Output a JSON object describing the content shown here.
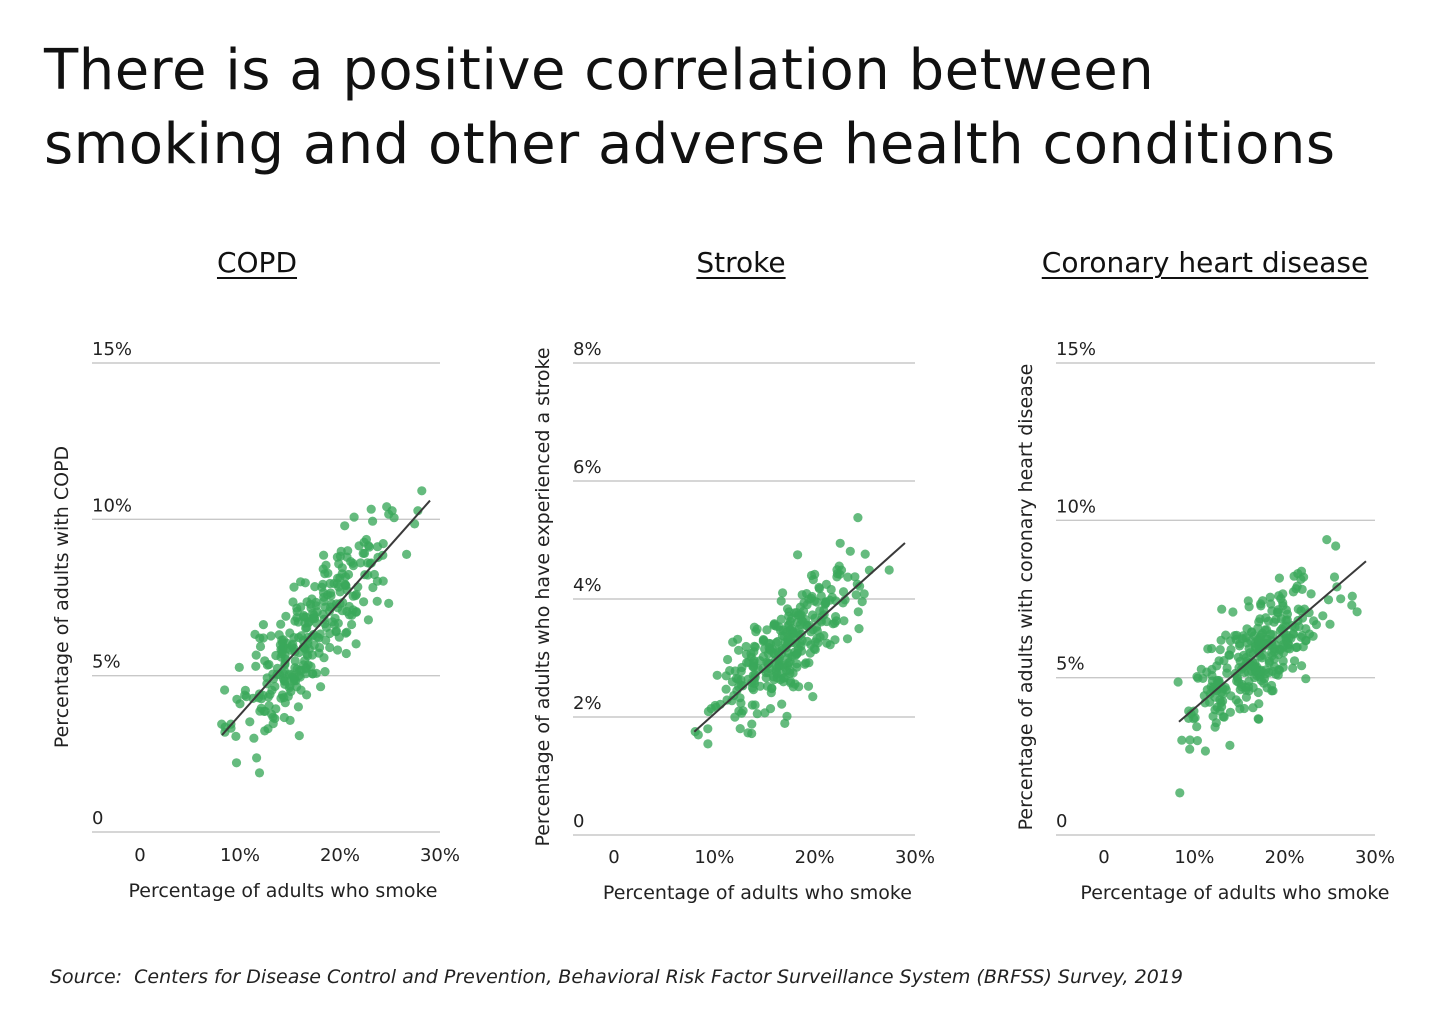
{
  "title_line1": "There is a positive correlation between",
  "title_line2": "smoking and other adverse health conditions",
  "source": "Source:  Centers for Disease Control and Prevention, Behavioral Risk Factor Surveillance System (BRFSS) Survey, 2019",
  "colors": {
    "point": "#3aa85a",
    "trend": "#3a3a3a",
    "grid": "#c8c8c8"
  },
  "chart_data": [
    {
      "type": "scatter",
      "title": "COPD",
      "xlabel": "Percentage of adults who smoke",
      "ylabel": "Percentage of adults with COPD",
      "xlim": [
        -5,
        30
      ],
      "ylim": [
        0,
        15
      ],
      "xticks": [
        0,
        10,
        20,
        30
      ],
      "xtick_labels": [
        "0",
        "10%",
        "20%",
        "30%"
      ],
      "yticks": [
        0,
        5,
        10,
        15
      ],
      "ytick_labels": [
        "0",
        "5%",
        "10%",
        "15%"
      ],
      "trend": {
        "x": [
          8.2,
          29.0
        ],
        "y": [
          3.1,
          10.6
        ]
      },
      "points": {
        "n": 300,
        "x_range": [
          8.0,
          29.0
        ],
        "residual_sd": 0.9,
        "seed": 11
      }
    },
    {
      "type": "scatter",
      "title": "Stroke",
      "xlabel": "Percentage of adults who smoke",
      "ylabel": "Percentage of adults who have experienced a stroke",
      "xlim": [
        -5,
        30
      ],
      "ylim": [
        0,
        8
      ],
      "xticks": [
        0,
        10,
        20,
        30
      ],
      "xtick_labels": [
        "0",
        "10%",
        "20%",
        "30%"
      ],
      "yticks": [
        0,
        2,
        4,
        6,
        8
      ],
      "ytick_labels": [
        "0",
        "2%",
        "4%",
        "6%",
        "8%"
      ],
      "trend": {
        "x": [
          8.0,
          29.0
        ],
        "y": [
          1.75,
          4.95
        ]
      },
      "points": {
        "n": 300,
        "x_range": [
          8.0,
          29.0
        ],
        "residual_sd": 0.42,
        "seed": 23
      }
    },
    {
      "type": "scatter",
      "title": "Coronary heart disease",
      "xlabel": "Percentage of adults who smoke",
      "ylabel": "Percentage of adults with coronary heart disease",
      "xlim": [
        -5,
        30
      ],
      "ylim": [
        0,
        15
      ],
      "xticks": [
        0,
        10,
        20,
        30
      ],
      "xtick_labels": [
        "0",
        "10%",
        "20%",
        "30%"
      ],
      "yticks": [
        0,
        5,
        10,
        15
      ],
      "ytick_labels": [
        "0",
        "5%",
        "10%",
        "15%"
      ],
      "trend": {
        "x": [
          8.3,
          29.0
        ],
        "y": [
          3.6,
          8.7
        ]
      },
      "points": {
        "n": 300,
        "x_range": [
          8.0,
          29.0
        ],
        "residual_sd": 0.85,
        "seed": 37
      }
    }
  ]
}
